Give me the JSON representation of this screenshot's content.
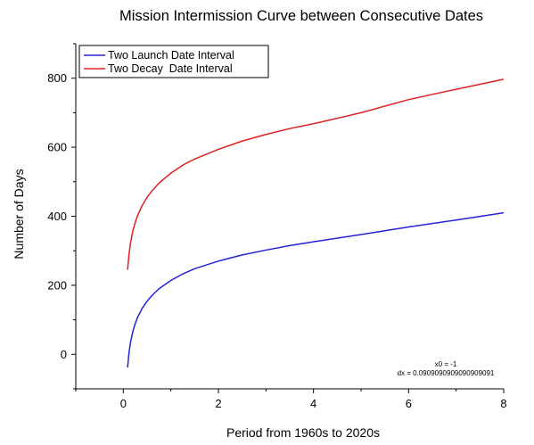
{
  "chart_data": {
    "type": "line",
    "title": "Mission Intermission Curve between Consecutive Dates",
    "xlabel": "Period from 1960s to 2020s",
    "ylabel": "Number of Days",
    "xlim": [
      -1,
      8
    ],
    "ylim": [
      -100,
      900
    ],
    "xticks": [
      0,
      2,
      4,
      6,
      8
    ],
    "yticks": [
      0,
      200,
      400,
      600,
      800
    ],
    "grid": false,
    "legend_position": "top-left",
    "series": [
      {
        "name": "Two Launch Date Interval",
        "color": "#2323d6",
        "x": [
          0.09,
          0.12,
          0.15,
          0.2,
          0.25,
          0.3,
          0.4,
          0.5,
          0.6,
          0.75,
          1.0,
          1.25,
          1.5,
          2.0,
          2.5,
          3.0,
          3.5,
          4.0,
          5.0,
          6.0,
          7.0,
          8.0
        ],
        "y": [
          -38,
          5,
          34,
          66,
          89,
          107,
          134,
          154,
          170,
          190,
          214,
          233,
          248,
          270,
          288,
          302,
          315,
          326,
          347,
          369,
          389,
          410
        ]
      },
      {
        "name": "Two Decay  Date Interval",
        "color": "#dd2222",
        "x": [
          0.09,
          0.12,
          0.15,
          0.2,
          0.25,
          0.3,
          0.4,
          0.5,
          0.6,
          0.75,
          1.0,
          1.25,
          1.5,
          2.0,
          2.5,
          3.0,
          3.5,
          4.0,
          5.0,
          6.0,
          7.0,
          8.0
        ],
        "y": [
          245,
          290,
          322,
          357,
          382,
          402,
          432,
          455,
          473,
          496,
          525,
          548,
          566,
          594,
          618,
          637,
          654,
          668,
          700,
          738,
          768,
          797
        ]
      }
    ],
    "annotation": {
      "line1": "x0 = -1",
      "line2": "dx = 0.0909090909090909091"
    }
  }
}
